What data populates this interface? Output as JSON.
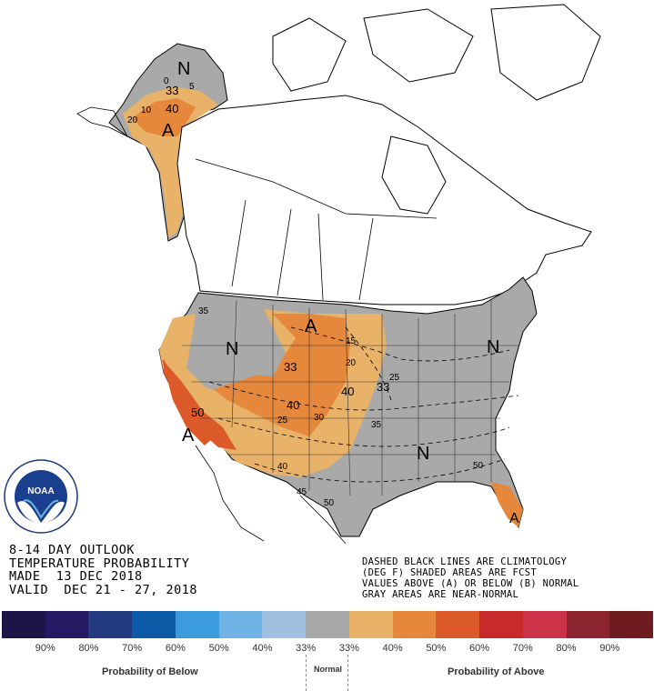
{
  "title": {
    "line1": "8-14 DAY OUTLOOK",
    "line2": "TEMPERATURE PROBABILITY",
    "line3": "MADE  13 DEC 2018",
    "line4": "VALID  DEC 21 - 27, 2018"
  },
  "notes": {
    "line1": "DASHED BLACK LINES ARE CLIMATOLOGY",
    "line2": "(DEG F) SHADED AREAS ARE FCST",
    "line3": "VALUES ABOVE (A) OR BELOW (B) NORMAL",
    "line4": "GRAY AREAS ARE NEAR-NORMAL"
  },
  "logo": {
    "text": "NOAA"
  },
  "map_labels": {
    "alaska_n": "N",
    "alaska_a": "A",
    "alaska_33": "33",
    "alaska_40": "40",
    "alaska_5": "5",
    "alaska_0": "0",
    "alaska_10": "10",
    "alaska_20": "20",
    "west_n": "N",
    "west_a": "A",
    "west_50": "50",
    "west_35": "35",
    "plains_a": "A",
    "plains_33": "33",
    "rockies_33": "33",
    "rockies_40": "40",
    "plains_40": "40",
    "east_n": "N",
    "south_n": "N",
    "florida_a": "A",
    "iso_15": "15",
    "iso_20": "20",
    "iso_25": "25",
    "iso_25b": "25",
    "iso_30": "30",
    "iso_35": "35",
    "iso_40": "40",
    "iso_45": "45",
    "iso_50": "50",
    "iso_50b": "50",
    "iso_33e": "33"
  },
  "legend": {
    "colors": [
      "#1f1448",
      "#241a63",
      "#233b80",
      "#0d5aa6",
      "#3b9bdc",
      "#6fb3e4",
      "#9fc0e0",
      "#a9a9a9",
      "#e8b268",
      "#e5883c",
      "#dc5a2a",
      "#c8292b",
      "#cc3348",
      "#8c2430",
      "#6e1c20"
    ],
    "percents": [
      "90%",
      "80%",
      "70%",
      "60%",
      "50%",
      "40%",
      "33%",
      "33%",
      "40%",
      "50%",
      "60%",
      "70%",
      "80%",
      "90%"
    ],
    "below_label": "Probability of Below",
    "normal_label": "Normal",
    "above_label": "Probability of Above"
  }
}
